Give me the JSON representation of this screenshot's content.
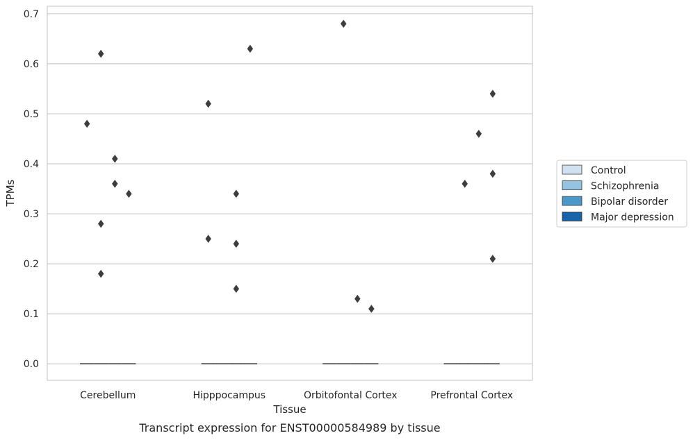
{
  "chart_data": {
    "type": "boxplot",
    "caption": "Transcript expression for ENST00000584989 by tissue",
    "xlabel": "Tissue",
    "ylabel": "TPMs",
    "ylim": [
      -0.033,
      0.715
    ],
    "yticks": [
      0.0,
      0.1,
      0.2,
      0.3,
      0.4,
      0.5,
      0.6,
      0.7
    ],
    "ytick_labels": [
      "0.0",
      "0.1",
      "0.2",
      "0.3",
      "0.4",
      "0.5",
      "0.6",
      "0.7"
    ],
    "grid": "horizontal",
    "legend_position": "right",
    "categories": [
      "Cerebellum",
      "Hipppocampus",
      "Orbitofontal Cortex",
      "Prefrontal Cortex"
    ],
    "series": [
      {
        "name": "Control",
        "color": "#d0e1f2",
        "median": [
          0,
          0,
          0,
          0
        ],
        "outliers": [
          [
            0.48
          ],
          [
            0.52
          ],
          [],
          []
        ]
      },
      {
        "name": "Schizophrenia",
        "color": "#94c4df",
        "median": [
          0,
          0,
          0,
          0
        ],
        "outliers": [
          [
            0.62,
            0.28,
            0.18
          ],
          [],
          [
            0.68
          ],
          [
            0.36
          ]
        ]
      },
      {
        "name": "Bipolar disorder",
        "color": "#4a98c9",
        "median": [
          0,
          0,
          0,
          0
        ],
        "outliers": [
          [
            0.41,
            0.36
          ],
          [
            0.34,
            0.24,
            0.15
          ],
          [
            0.13
          ],
          [
            0.46
          ]
        ]
      },
      {
        "name": "Major depression",
        "color": "#1764ab",
        "median": [
          0,
          0,
          0,
          0
        ],
        "outliers": [
          [
            0.34
          ],
          [
            0.63
          ],
          [
            0.11
          ],
          [
            0.38,
            0.21
          ]
        ]
      }
    ],
    "extra_outliers": [
      {
        "category": 1,
        "series": 0,
        "value": 0.25
      },
      {
        "category": 3,
        "series": 3,
        "value": 0.54
      }
    ]
  }
}
